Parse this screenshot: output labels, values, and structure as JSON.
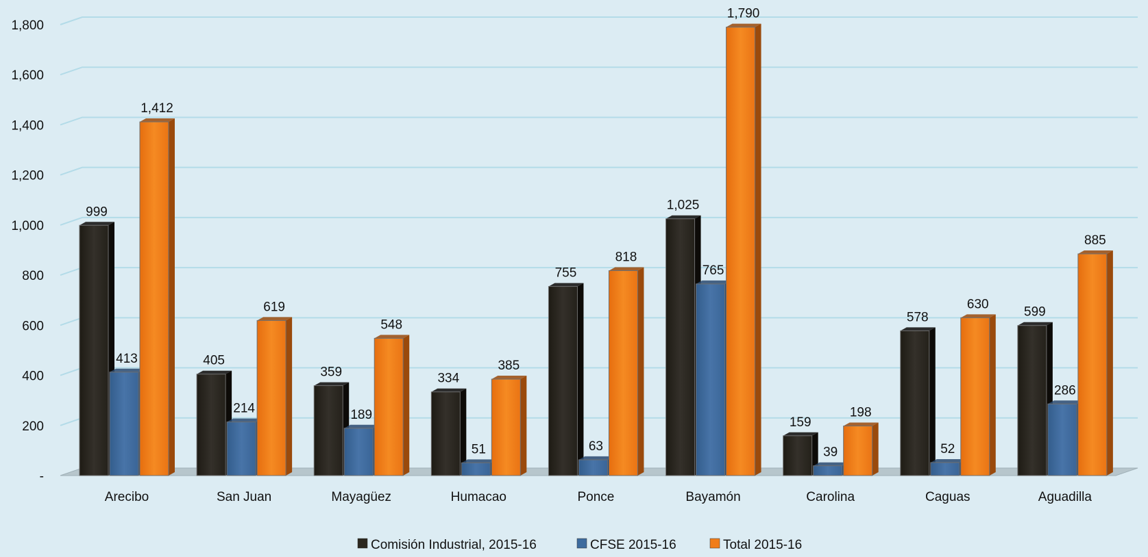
{
  "chart_data": {
    "type": "bar",
    "categories": [
      "Arecibo",
      "San Juan",
      "Mayagüez",
      "Humacao",
      "Ponce",
      "Bayamón",
      "Carolina",
      "Caguas",
      "Aguadilla"
    ],
    "series": [
      {
        "name": "Comisión Industrial, 2015-16",
        "values": [
          999,
          405,
          359,
          334,
          755,
          1025,
          159,
          578,
          599
        ],
        "labels": [
          "999",
          "405",
          "359",
          "334",
          "755",
          "1,025",
          "159",
          "578",
          "599"
        ],
        "color": "#2b271e"
      },
      {
        "name": "CFSE 2015-16",
        "values": [
          413,
          214,
          189,
          51,
          63,
          765,
          39,
          52,
          286
        ],
        "labels": [
          "413",
          "214",
          "189",
          "51",
          "63",
          "765",
          "39",
          "52",
          "286"
        ],
        "color": "#3d6b9e"
      },
      {
        "name": "Total 2015-16",
        "values": [
          1412,
          619,
          548,
          385,
          818,
          1790,
          198,
          630,
          885
        ],
        "labels": [
          "1,412",
          "619",
          "548",
          "385",
          "818",
          "1,790",
          "198",
          "630",
          "885"
        ],
        "color": "#f07d1a"
      }
    ],
    "y_ticks": [
      "-",
      "200",
      "400",
      "600",
      "800",
      "1,000",
      "1,200",
      "1,400",
      "1,600",
      "1,800"
    ],
    "ylim": [
      0,
      1800
    ],
    "grid": true,
    "legend_position": "bottom-center"
  }
}
